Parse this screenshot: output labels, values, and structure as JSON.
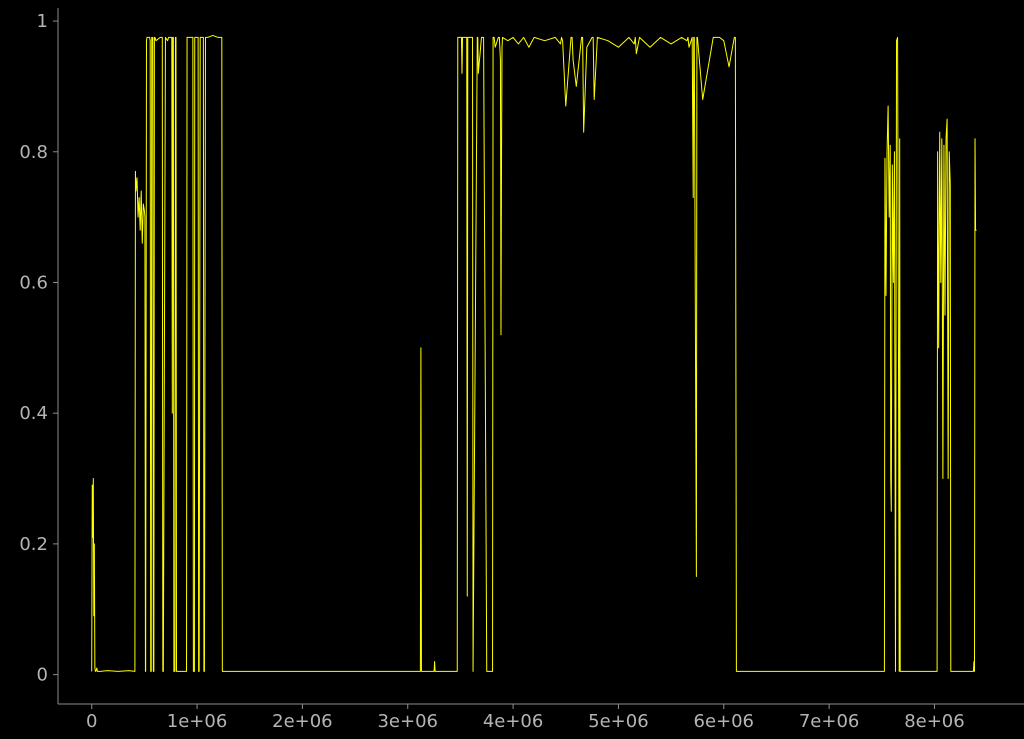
{
  "chart_data": {
    "type": "line",
    "title": "",
    "xlabel": "",
    "ylabel": "",
    "xlim": [
      -320000,
      8850000
    ],
    "ylim": [
      -0.045,
      1.02
    ],
    "x_ticks": [
      {
        "value": 0,
        "label": "0"
      },
      {
        "value": 1000000,
        "label": "1e+06"
      },
      {
        "value": 2000000,
        "label": "2e+06"
      },
      {
        "value": 3000000,
        "label": "3e+06"
      },
      {
        "value": 4000000,
        "label": "4e+06"
      },
      {
        "value": 5000000,
        "label": "5e+06"
      },
      {
        "value": 6000000,
        "label": "6e+06"
      },
      {
        "value": 7000000,
        "label": "7e+06"
      },
      {
        "value": 8000000,
        "label": "8e+06"
      }
    ],
    "y_ticks": [
      {
        "value": 0,
        "label": "0"
      },
      {
        "value": 0.2,
        "label": "0.2"
      },
      {
        "value": 0.4,
        "label": "0.4"
      },
      {
        "value": 0.6,
        "label": "0.6"
      },
      {
        "value": 0.8,
        "label": "0.8"
      },
      {
        "value": 1,
        "label": "1"
      }
    ],
    "grid": false,
    "legend": "none",
    "series": [
      {
        "color": "#ffff00",
        "x": [
          0,
          5000,
          10000,
          15000,
          20000,
          25000,
          30000,
          35000,
          40000,
          48000,
          55000,
          80000,
          150000,
          250000,
          350000,
          410000,
          415000,
          420000,
          430000,
          440000,
          450000,
          460000,
          470000,
          480000,
          490000,
          500000,
          505000,
          510000,
          512000,
          520000,
          525000,
          550000,
          555000,
          560000,
          565000,
          570000,
          575000,
          580000,
          585000,
          590000,
          595000,
          600000,
          610000,
          650000,
          670000,
          675000,
          680000,
          700000,
          720000,
          730000,
          760000,
          765000,
          770000,
          775000,
          780000,
          790000,
          795000,
          800000,
          805000,
          900000,
          905000,
          910000,
          920000,
          960000,
          965000,
          975000,
          978000,
          985000,
          1000000,
          1010000,
          1015000,
          1020000,
          1030000,
          1035000,
          1040000,
          1050000,
          1060000,
          1065000,
          1070000,
          1080000,
          1100000,
          1150000,
          1200000,
          1230000,
          1235000,
          1240000,
          1300000,
          2000000,
          3000000,
          3120000,
          3125000,
          3130000,
          3135000,
          3140000,
          3250000,
          3255000,
          3260000,
          3265000,
          3270000,
          3470000,
          3475000,
          3480000,
          3500000,
          3510000,
          3515000,
          3520000,
          3540000,
          3560000,
          3565000,
          3570000,
          3600000,
          3610000,
          3615000,
          3620000,
          3660000,
          3665000,
          3670000,
          3700000,
          3710000,
          3720000,
          3750000,
          3790000,
          3800000,
          3805000,
          3810000,
          3820000,
          3830000,
          3860000,
          3870000,
          3880000,
          3885000,
          3890000,
          3895000,
          3900000,
          3950000,
          4000000,
          4050000,
          4100000,
          4150000,
          4200000,
          4300000,
          4400000,
          4450000,
          4460000,
          4470000,
          4500000,
          4550000,
          4560000,
          4570000,
          4600000,
          4650000,
          4660000,
          4670000,
          4700000,
          4750000,
          4760000,
          4770000,
          4800000,
          4900000,
          5000000,
          5100000,
          5150000,
          5160000,
          5170000,
          5200000,
          5300000,
          5400000,
          5500000,
          5600000,
          5650000,
          5660000,
          5670000,
          5700000,
          5710000,
          5715000,
          5720000,
          5740000,
          5745000,
          5750000,
          5800000,
          5900000,
          5950000,
          5955000,
          5960000,
          6000000,
          6050000,
          6100000,
          6105000,
          6110000,
          6120000,
          6500000,
          7000000,
          7500000,
          7520000,
          7525000,
          7530000,
          7540000,
          7550000,
          7560000,
          7570000,
          7580000,
          7585000,
          7590000,
          7600000,
          7610000,
          7620000,
          7630000,
          7640000,
          7650000,
          7660000,
          7665000,
          7670000,
          7675000,
          7680000,
          7700000,
          8000000,
          8020000,
          8025000,
          8030000,
          8040000,
          8050000,
          8060000,
          8070000,
          8080000,
          8090000,
          8100000,
          8110000,
          8120000,
          8130000,
          8140000,
          8150000,
          8155000,
          8160000,
          8170000,
          8300000,
          8370000,
          8375000,
          8380000,
          8385000,
          8390000,
          8400000
        ],
        "y": [
          0.005,
          0.29,
          0.21,
          0.3,
          0.09,
          0.2,
          0.01,
          0.005,
          0.005,
          0.01,
          0.005,
          0.005,
          0.006,
          0.005,
          0.006,
          0.005,
          0.77,
          0.74,
          0.76,
          0.7,
          0.73,
          0.68,
          0.74,
          0.66,
          0.72,
          0.71,
          0.7,
          0.005,
          0.005,
          0.97,
          0.975,
          0.975,
          0.97,
          0.005,
          0.005,
          0.975,
          0.97,
          0.975,
          0.005,
          0.005,
          0.975,
          0.975,
          0.97,
          0.975,
          0.975,
          0.005,
          0.005,
          0.975,
          0.97,
          0.975,
          0.975,
          0.4,
          0.975,
          0.975,
          0.005,
          0.005,
          0.975,
          0.975,
          0.005,
          0.005,
          0.975,
          0.975,
          0.975,
          0.975,
          0.005,
          0.005,
          0.975,
          0.975,
          0.975,
          0.975,
          0.005,
          0.005,
          0.975,
          0.975,
          0.975,
          0.975,
          0.975,
          0.005,
          0.005,
          0.975,
          0.975,
          0.978,
          0.975,
          0.975,
          0.975,
          0.005,
          0.005,
          0.005,
          0.005,
          0.005,
          0.5,
          0.005,
          0.005,
          0.005,
          0.005,
          0.02,
          0.005,
          0.005,
          0.005,
          0.005,
          0.975,
          0.975,
          0.975,
          0.975,
          0.92,
          0.975,
          0.975,
          0.975,
          0.12,
          0.975,
          0.975,
          0.975,
          0.975,
          0.005,
          0.975,
          0.975,
          0.92,
          0.975,
          0.975,
          0.975,
          0.005,
          0.005,
          0.005,
          0.005,
          0.975,
          0.975,
          0.96,
          0.975,
          0.975,
          0.94,
          0.52,
          0.78,
          0.96,
          0.975,
          0.97,
          0.975,
          0.965,
          0.975,
          0.96,
          0.975,
          0.97,
          0.975,
          0.965,
          0.975,
          0.97,
          0.87,
          0.975,
          0.975,
          0.94,
          0.9,
          0.975,
          0.975,
          0.83,
          0.96,
          0.975,
          0.975,
          0.88,
          0.975,
          0.97,
          0.96,
          0.975,
          0.965,
          0.975,
          0.95,
          0.975,
          0.96,
          0.975,
          0.965,
          0.975,
          0.97,
          0.975,
          0.96,
          0.975,
          0.73,
          0.975,
          0.975,
          0.15,
          0.975,
          0.975,
          0.88,
          0.975,
          0.975,
          0.975,
          0.975,
          0.97,
          0.93,
          0.975,
          0.975,
          0.975,
          0.005,
          0.005,
          0.005,
          0.005,
          0.005,
          0.005,
          0.79,
          0.58,
          0.8,
          0.87,
          0.7,
          0.81,
          0.3,
          0.25,
          0.78,
          0.6,
          0.8,
          0.005,
          0.97,
          0.975,
          0.4,
          0.005,
          0.82,
          0.005,
          0.005,
          0.005,
          0.005,
          0.005,
          0.005,
          0.8,
          0.5,
          0.83,
          0.6,
          0.82,
          0.3,
          0.81,
          0.55,
          0.82,
          0.85,
          0.3,
          0.8,
          0.75,
          0.005,
          0.005,
          0.005,
          0.005,
          0.005,
          0.02,
          0.005,
          0.82,
          0.68,
          0.68
        ]
      }
    ]
  }
}
